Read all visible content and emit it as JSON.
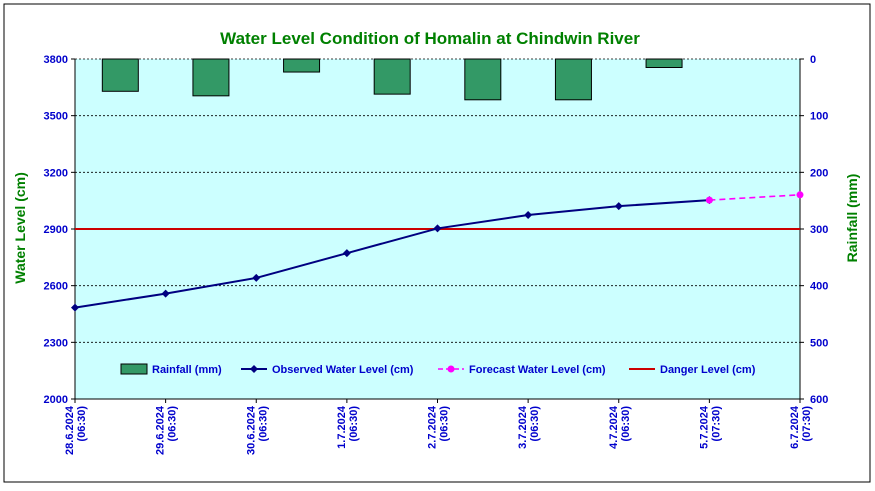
{
  "chart_data": {
    "type": "line",
    "title": "Water Level Condition of Homalin at Chindwin River",
    "ylabel_left": "Water Level (cm)",
    "ylabel_right": "Rainfall (mm)",
    "y_left": {
      "min": 2000,
      "max": 3800,
      "ticks": [
        2000,
        2300,
        2600,
        2900,
        3200,
        3500,
        3800
      ]
    },
    "y_right": {
      "min": 0,
      "max": 600,
      "inverted": true,
      "ticks": [
        0,
        100,
        200,
        300,
        400,
        500,
        600
      ]
    },
    "grid": true,
    "legend_position": "bottom-inside",
    "categories": [
      [
        "28.6.2024",
        "(06:30)"
      ],
      [
        "29.6.2024",
        "(06:30)"
      ],
      [
        "30.6.2024",
        "(06:30)"
      ],
      [
        "1.7.2024",
        "(06:30)"
      ],
      [
        "2.7.2024",
        "(06:30)"
      ],
      [
        "3.7.2024",
        "(06:30)"
      ],
      [
        "4.7.2024",
        "(06:30)"
      ],
      [
        "5.7.2024",
        "(07:30)"
      ],
      [
        "6.7.2024",
        "(07:30)"
      ]
    ],
    "series": [
      {
        "name": "Rainfall (mm)",
        "kind": "bar",
        "axis": "right",
        "color": "#339966",
        "values": [
          57,
          65,
          23,
          62,
          72,
          72,
          15,
          null,
          null
        ]
      },
      {
        "name": "Observed Water Level (cm)",
        "kind": "line",
        "axis": "left",
        "color": "#000080",
        "values": [
          2484,
          2558,
          2641,
          2772,
          2903,
          2974,
          3021,
          3053,
          null
        ]
      },
      {
        "name": "Forecast Water Level (cm)",
        "kind": "line-dashed",
        "axis": "left",
        "color": "#FF00FF",
        "values": [
          null,
          null,
          null,
          null,
          null,
          null,
          null,
          3053,
          3081
        ]
      },
      {
        "name": "Danger Level (cm)",
        "kind": "hline",
        "axis": "left",
        "color": "#CC0000",
        "value": 2900
      }
    ],
    "colors": {
      "plot_background": "#CCFFFF",
      "title": "#008000",
      "axis_labels": "#008000",
      "tick_labels": "#0000CC"
    }
  }
}
